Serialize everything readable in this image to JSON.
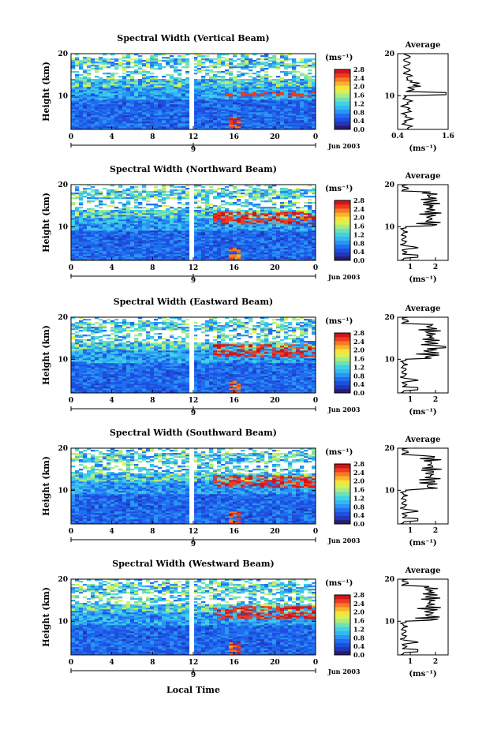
{
  "figure": {
    "xlabel": "Local Time",
    "date_label": "Jun 2003",
    "ylabel": "Height (km)",
    "y_ticks": [
      "20",
      "10"
    ],
    "x_ticks": [
      "0",
      "4",
      "8",
      "12",
      "16",
      "20",
      "0"
    ],
    "day_ticks": [
      "9"
    ],
    "unit_label": "(ms⁻¹)",
    "colorbar_ticks": [
      "2.8",
      "2.4",
      "2.0",
      "1.6",
      "1.2",
      "0.8",
      "0.4",
      "0.0"
    ],
    "avg_title": "Average",
    "avg_unit": "(ms⁻¹)",
    "avg_y_ticks": [
      "20",
      "10"
    ]
  },
  "panels": [
    {
      "title": "Spectral Width (Vertical Beam)",
      "avg_x_ticks": [
        "0.4",
        "1.6"
      ]
    },
    {
      "title": "Spectral Width (Northward Beam)",
      "avg_x_ticks": [
        "1",
        "2"
      ]
    },
    {
      "title": "Spectral Width (Eastward Beam)",
      "avg_x_ticks": [
        "1",
        "2"
      ]
    },
    {
      "title": "Spectral Width (Southward Beam)",
      "avg_x_ticks": [
        "1",
        "2"
      ]
    },
    {
      "title": "Spectral Width (Westward Beam)",
      "avg_x_ticks": [
        "1",
        "2"
      ]
    }
  ],
  "chart_data": [
    {
      "type": "heatmap",
      "title": "Spectral Width (Vertical Beam)",
      "xlabel": "Local Time",
      "ylabel": "Height (km)",
      "x_range_hours": [
        0,
        24
      ],
      "y_range_km": [
        2,
        20
      ],
      "colorbar_range": [
        0.0,
        2.8
      ],
      "colorbar_unit": "ms⁻¹",
      "data_gap_hours": [
        11.6,
        12.1
      ]
    },
    {
      "type": "line",
      "title": "Average",
      "xlabel": "(ms⁻¹)",
      "ylabel": "Height (km)",
      "xlim": [
        0.4,
        1.6
      ],
      "ylim": [
        2,
        20
      ]
    },
    {
      "type": "heatmap",
      "title": "Spectral Width (Northward Beam)",
      "xlabel": "Local Time",
      "ylabel": "Height (km)",
      "x_range_hours": [
        0,
        24
      ],
      "y_range_km": [
        2,
        20
      ],
      "colorbar_range": [
        0.0,
        2.8
      ],
      "colorbar_unit": "ms⁻¹",
      "data_gap_hours": [
        11.6,
        12.1
      ]
    },
    {
      "type": "line",
      "title": "Average",
      "xlabel": "(ms⁻¹)",
      "ylabel": "Height (km)",
      "xlim": [
        0.5,
        2.5
      ],
      "ylim": [
        2,
        20
      ]
    },
    {
      "type": "heatmap",
      "title": "Spectral Width (Eastward Beam)",
      "xlabel": "Local Time",
      "ylabel": "Height (km)",
      "x_range_hours": [
        0,
        24
      ],
      "y_range_km": [
        2,
        20
      ],
      "colorbar_range": [
        0.0,
        2.8
      ],
      "colorbar_unit": "ms⁻¹",
      "data_gap_hours": [
        11.6,
        12.1
      ]
    },
    {
      "type": "line",
      "title": "Average",
      "xlabel": "(ms⁻¹)",
      "ylabel": "Height (km)",
      "xlim": [
        0.5,
        2.5
      ],
      "ylim": [
        2,
        20
      ]
    },
    {
      "type": "heatmap",
      "title": "Spectral Width (Southward Beam)",
      "xlabel": "Local Time",
      "ylabel": "Height (km)",
      "x_range_hours": [
        0,
        24
      ],
      "y_range_km": [
        2,
        20
      ],
      "colorbar_range": [
        0.0,
        2.8
      ],
      "colorbar_unit": "ms⁻¹",
      "data_gap_hours": [
        11.6,
        12.1
      ]
    },
    {
      "type": "line",
      "title": "Average",
      "xlabel": "(ms⁻¹)",
      "ylabel": "Height (km)",
      "xlim": [
        0.5,
        2.5
      ],
      "ylim": [
        2,
        20
      ]
    },
    {
      "type": "heatmap",
      "title": "Spectral Width (Westward Beam)",
      "xlabel": "Local Time",
      "ylabel": "Height (km)",
      "x_range_hours": [
        0,
        24
      ],
      "y_range_km": [
        2,
        20
      ],
      "colorbar_range": [
        0.0,
        2.8
      ],
      "colorbar_unit": "ms⁻¹",
      "data_gap_hours": [
        11.6,
        12.1
      ]
    },
    {
      "type": "line",
      "title": "Average",
      "xlabel": "(ms⁻¹)",
      "ylabel": "Height (km)",
      "xlim": [
        0.5,
        2.5
      ],
      "ylim": [
        2,
        20
      ]
    }
  ]
}
